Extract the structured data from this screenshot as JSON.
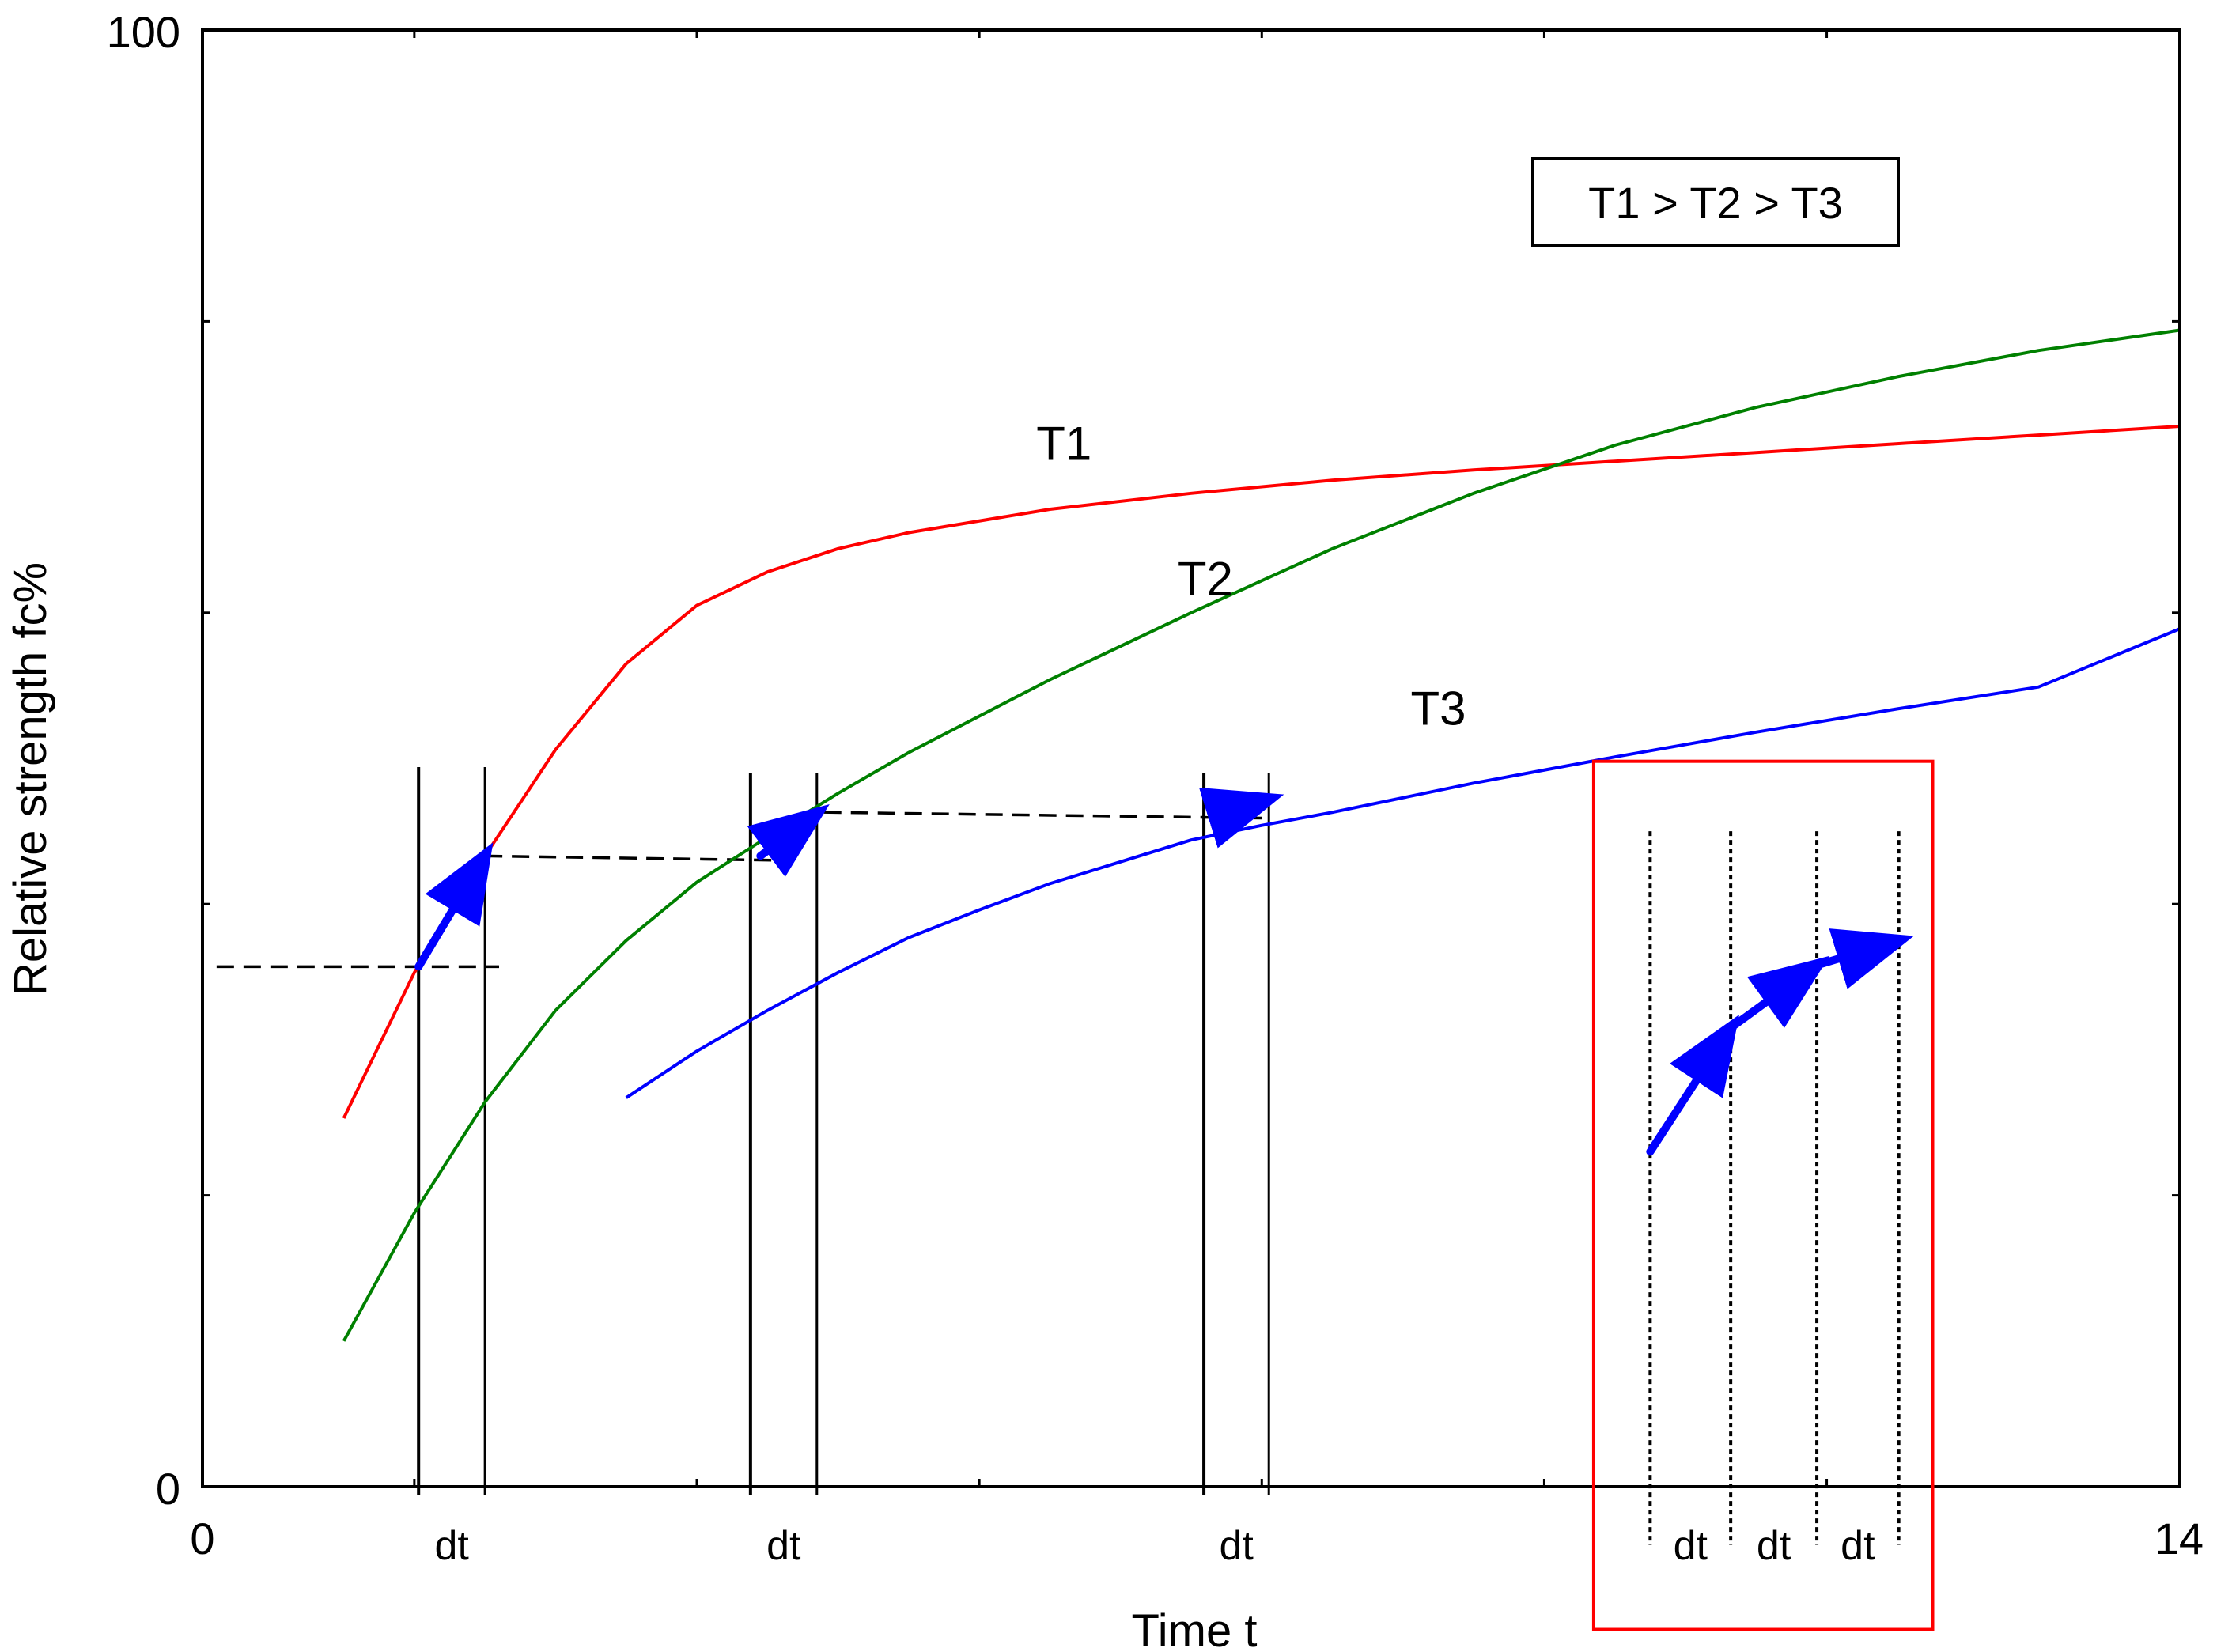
{
  "chart_data": {
    "type": "line",
    "title": "",
    "xlabel": "Time t",
    "ylabel": "Relative strength fc%",
    "xlim": [
      0,
      14
    ],
    "ylim": [
      0,
      100
    ],
    "x_tick_labels": [
      {
        "x": 0,
        "text": "0"
      },
      {
        "x": 14,
        "text": "14"
      }
    ],
    "y_tick_labels": [
      {
        "y": 0,
        "text": "0"
      },
      {
        "y": 100,
        "text": "100"
      }
    ],
    "x_minor_ticks": [
      1.5,
      3.5,
      5.5,
      7.5,
      9.5,
      11.5
    ],
    "y_minor_ticks": [
      20,
      40,
      60,
      80
    ],
    "legend_box": {
      "text": "T1 > T2 > T3",
      "position": "top-right"
    },
    "series": [
      {
        "name": "T1",
        "color": "#ff0000",
        "label_at": [
          6.1,
          70.5
        ],
        "points": [
          [
            1.0,
            25.3
          ],
          [
            1.5,
            35.3
          ],
          [
            2.0,
            43.3
          ],
          [
            2.5,
            50.6
          ],
          [
            3.0,
            56.5
          ],
          [
            3.5,
            60.5
          ],
          [
            4.0,
            62.8
          ],
          [
            4.5,
            64.4
          ],
          [
            5.0,
            65.5
          ],
          [
            6.0,
            67.1
          ],
          [
            7.0,
            68.2
          ],
          [
            8.0,
            69.1
          ],
          [
            9.0,
            69.8
          ],
          [
            10.0,
            70.4
          ],
          [
            11.0,
            71.0
          ],
          [
            12.0,
            71.6
          ],
          [
            13.0,
            72.2
          ],
          [
            14.0,
            72.8
          ]
        ]
      },
      {
        "name": "T2",
        "color": "#008000",
        "label_at": [
          7.1,
          61.2
        ],
        "points": [
          [
            1.0,
            10.0
          ],
          [
            1.5,
            18.8
          ],
          [
            2.0,
            26.4
          ],
          [
            2.5,
            32.7
          ],
          [
            3.0,
            37.5
          ],
          [
            3.5,
            41.5
          ],
          [
            4.0,
            44.6
          ],
          [
            4.5,
            47.6
          ],
          [
            5.0,
            50.4
          ],
          [
            6.0,
            55.4
          ],
          [
            7.0,
            60.0
          ],
          [
            8.0,
            64.4
          ],
          [
            9.0,
            68.2
          ],
          [
            10.0,
            71.5
          ],
          [
            11.0,
            74.1
          ],
          [
            12.0,
            76.2
          ],
          [
            13.0,
            78.0
          ],
          [
            14.0,
            79.4
          ]
        ]
      },
      {
        "name": "T3",
        "color": "#0000ff",
        "label_at": [
          8.75,
          52.3
        ],
        "points": [
          [
            3.0,
            26.7
          ],
          [
            3.5,
            29.9
          ],
          [
            4.0,
            32.7
          ],
          [
            4.5,
            35.3
          ],
          [
            5.0,
            37.7
          ],
          [
            5.5,
            39.6
          ],
          [
            6.0,
            41.4
          ],
          [
            7.0,
            44.4
          ],
          [
            7.5,
            45.4
          ],
          [
            8.0,
            46.3
          ],
          [
            9.0,
            48.3
          ],
          [
            10.0,
            50.1
          ],
          [
            11.0,
            51.8
          ],
          [
            12.0,
            53.4
          ],
          [
            13.0,
            54.9
          ],
          [
            14.0,
            58.9
          ]
        ]
      }
    ],
    "dt_intervals": [
      {
        "x0": 1.53,
        "x1": 2.0,
        "y_top": 49.4,
        "dt_label": "dt"
      },
      {
        "x0": 3.88,
        "x1": 4.35,
        "y_top": 49.0,
        "dt_label": "dt"
      },
      {
        "x0": 7.09,
        "x1": 7.55,
        "y_top": 49.0,
        "dt_label": "dt"
      }
    ],
    "dt_box_lines": [
      10.25,
      10.82,
      11.43,
      12.01
    ],
    "dt_box_labels": [
      "dt",
      "dt",
      "dt"
    ],
    "dashed_transfers": [
      [
        [
          0.1,
          35.7
        ],
        [
          2.1,
          35.7
        ]
      ],
      [
        [
          2.0,
          43.3
        ],
        [
          4.1,
          43.0
        ]
      ],
      [
        [
          4.4,
          46.3
        ],
        [
          7.5,
          45.9
        ]
      ]
    ],
    "arrows": [
      [
        [
          1.53,
          35.7
        ],
        [
          2.0,
          43.3
        ]
      ],
      [
        [
          3.95,
          43.3
        ],
        [
          4.35,
          46.2
        ]
      ],
      [
        [
          7.15,
          46.0
        ],
        [
          7.55,
          47.2
        ]
      ],
      [
        [
          10.25,
          23.0
        ],
        [
          10.82,
          31.5
        ]
      ],
      [
        [
          10.82,
          31.5
        ],
        [
          11.43,
          35.8
        ]
      ],
      [
        [
          11.43,
          35.8
        ],
        [
          12.01,
          37.5
        ]
      ]
    ],
    "highlight_box": {
      "x0": 9.85,
      "x1": 12.25,
      "y0": -9.8,
      "y1": 49.8,
      "color": "#ff0000"
    },
    "colors": {
      "axis": "#000000",
      "arrow": "#0000ff",
      "highlight": "#ff0000"
    }
  }
}
